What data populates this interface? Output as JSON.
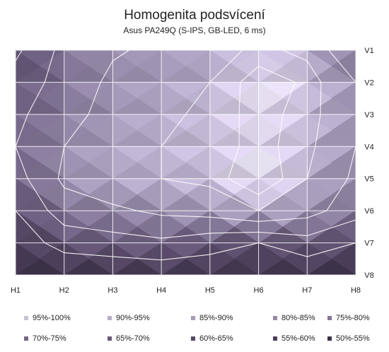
{
  "chart_data": {
    "type": "heatmap",
    "title": "Homogenita podsvícení",
    "subtitle": "Asus PA249Q  (S-IPS, GB-LED, 6 ms)",
    "x_labels": [
      "H1",
      "H2",
      "H3",
      "H4",
      "H5",
      "H6",
      "H7",
      "H8"
    ],
    "y_labels": [
      "V1",
      "V2",
      "V3",
      "V4",
      "V5",
      "V6",
      "V7",
      "V8"
    ],
    "unit": "%",
    "values": [
      [
        58,
        73,
        79,
        82,
        86,
        92,
        88,
        70
      ],
      [
        64,
        74,
        82,
        86,
        90,
        98,
        94,
        80
      ],
      [
        68,
        76,
        84,
        88,
        92,
        97,
        93,
        82
      ],
      [
        70,
        80,
        87,
        90,
        92,
        97,
        92,
        80
      ],
      [
        66,
        82,
        88,
        90,
        92,
        100,
        90,
        78
      ],
      [
        60,
        75,
        78,
        82,
        84,
        90,
        84,
        74
      ],
      [
        54,
        64,
        66,
        68,
        64,
        60,
        66,
        60
      ],
      [
        51,
        51,
        52,
        53,
        53,
        53,
        52,
        50
      ]
    ],
    "legend": [
      {
        "label": "95%-100%",
        "color": "#c9c2d4"
      },
      {
        "label": "90%-95%",
        "color": "#b7afc5"
      },
      {
        "label": "85%-90%",
        "color": "#a79db7"
      },
      {
        "label": "80%-85%",
        "color": "#968aa8"
      },
      {
        "label": "75%-80%",
        "color": "#857898"
      },
      {
        "label": "70%-75%",
        "color": "#756788"
      },
      {
        "label": "65%-70%",
        "color": "#665878"
      },
      {
        "label": "60%-65%",
        "color": "#574a68"
      },
      {
        "label": "55%-60%",
        "color": "#493d58"
      },
      {
        "label": "50%-55%",
        "color": "#3b3148"
      }
    ],
    "grid": true,
    "contour_lines": true,
    "legend_placement": "bottom"
  }
}
